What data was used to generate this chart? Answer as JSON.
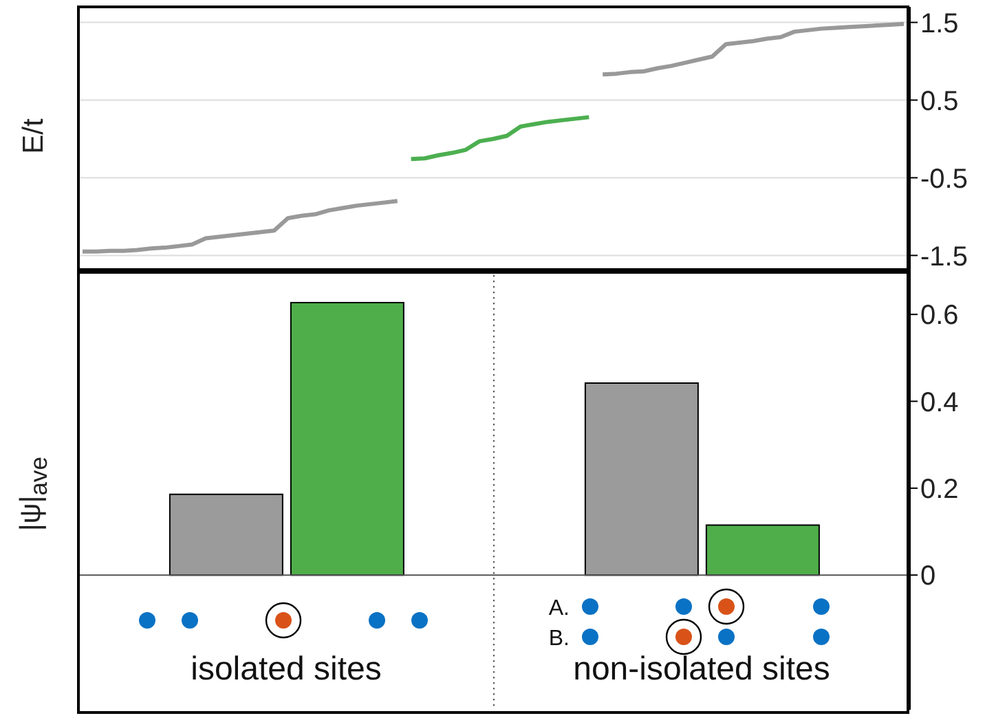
{
  "chart_data": [
    {
      "type": "line",
      "ylabel": "E/t",
      "categories": [
        null,
        null,
        null,
        null,
        null,
        null,
        null,
        null,
        null,
        null,
        null,
        null,
        null,
        null,
        null,
        null,
        null,
        null,
        null,
        null,
        null,
        null,
        null,
        null,
        null,
        null,
        null,
        null,
        null,
        null,
        null,
        null,
        null,
        null,
        null,
        null,
        null,
        null,
        null,
        null,
        null,
        null,
        null,
        null,
        null,
        null,
        null,
        null,
        null,
        null,
        null,
        null,
        null,
        null,
        null,
        null,
        null,
        null,
        null,
        null,
        null
      ],
      "series": [
        {
          "color": "#999999",
          "values": [
            -1.45,
            -1.45,
            -1.44,
            -1.44,
            -1.43,
            -1.41,
            -1.4,
            -1.38,
            -1.36,
            -1.28,
            -1.26,
            -1.24,
            -1.22,
            -1.2,
            -1.18,
            -1.02,
            -0.99,
            -0.97,
            -0.92,
            -0.89,
            -0.86,
            -0.84,
            -0.82,
            -0.8,
            null,
            null,
            null,
            null,
            null,
            null,
            null,
            null,
            null,
            null,
            null,
            null,
            null,
            null,
            0.83,
            0.84,
            0.86,
            0.87,
            0.91,
            0.94,
            0.98,
            1.02,
            1.06,
            1.22,
            1.24,
            1.26,
            1.29,
            1.31,
            1.38,
            1.4,
            1.42,
            1.43,
            1.44,
            1.45,
            1.46,
            1.47,
            1.48
          ]
        },
        {
          "color": "#4caf50",
          "values": [
            null,
            null,
            null,
            null,
            null,
            null,
            null,
            null,
            null,
            null,
            null,
            null,
            null,
            null,
            null,
            null,
            null,
            null,
            null,
            null,
            null,
            null,
            null,
            null,
            -0.26,
            -0.25,
            -0.21,
            -0.18,
            -0.14,
            -0.03,
            0.0,
            0.04,
            0.16,
            0.19,
            0.22,
            0.24,
            0.26,
            0.28,
            null,
            null,
            null,
            null,
            null,
            null,
            null,
            null,
            null,
            null,
            null,
            null,
            null,
            null,
            null,
            null,
            null,
            null,
            null,
            null,
            null,
            null,
            null
          ]
        }
      ],
      "ylim": [
        -1.7,
        1.7
      ],
      "yticks": [
        -1.5,
        -0.5,
        0.5,
        1.5
      ],
      "grid": "y",
      "tick_labels": "y"
    },
    {
      "type": "bar",
      "ylabel": "|ψ|$_{ave}$",
      "categories": [
        "isolated sites",
        "non-isolated sites"
      ],
      "series": [
        {
          "color": "#9b9b9b",
          "values": [
            0.186,
            0.442
          ]
        },
        {
          "color": "#4fae4a",
          "values": [
            0.627,
            0.115
          ]
        }
      ],
      "ylim": [
        -0.31,
        0.7
      ],
      "yticks": [
        0,
        0.2,
        0.4,
        0.6
      ],
      "ref_lines": [
        {
          "axis": "y",
          "value": 0,
          "color": "#555555"
        }
      ],
      "annotations": [
        "A.",
        "B."
      ]
    }
  ]
}
